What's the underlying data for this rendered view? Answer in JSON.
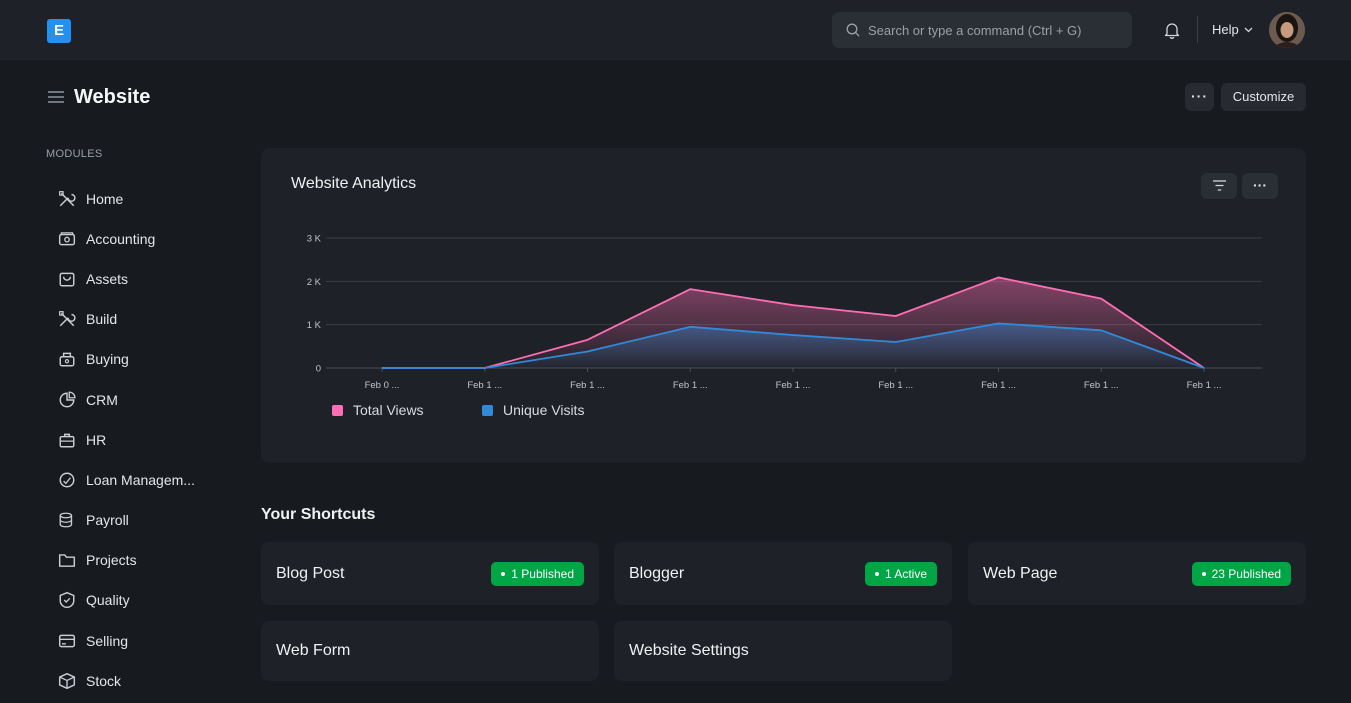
{
  "navbar": {
    "logo_letter": "E",
    "search_placeholder": "Search or type a command (Ctrl + G)",
    "help_label": "Help"
  },
  "page": {
    "title": "Website",
    "more_label": "···",
    "customize_label": "Customize"
  },
  "sidebar": {
    "section_label": "MODULES",
    "items": [
      {
        "label": "Home",
        "icon": "tools-icon"
      },
      {
        "label": "Accounting",
        "icon": "money-icon"
      },
      {
        "label": "Assets",
        "icon": "bag-icon"
      },
      {
        "label": "Build",
        "icon": "tools-icon"
      },
      {
        "label": "Buying",
        "icon": "cart-icon"
      },
      {
        "label": "CRM",
        "icon": "pie-icon"
      },
      {
        "label": "HR",
        "icon": "briefcase-icon"
      },
      {
        "label": "Loan Managem...",
        "icon": "loan-icon"
      },
      {
        "label": "Payroll",
        "icon": "coins-icon"
      },
      {
        "label": "Projects",
        "icon": "folder-icon"
      },
      {
        "label": "Quality",
        "icon": "shield-icon"
      },
      {
        "label": "Selling",
        "icon": "card-icon"
      },
      {
        "label": "Stock",
        "icon": "box-icon"
      }
    ]
  },
  "analytics": {
    "title": "Website Analytics",
    "more_label": "···"
  },
  "chart_data": {
    "type": "area",
    "categories": [
      "Feb 0 ...",
      "Feb 1 ...",
      "Feb 1 ...",
      "Feb 1 ...",
      "Feb 1 ...",
      "Feb 1 ...",
      "Feb 1 ...",
      "Feb 1 ...",
      "Feb 1 ..."
    ],
    "y_ticks": [
      "0",
      "1 K",
      "2 K",
      "3 K"
    ],
    "ylim": [
      0,
      3000
    ],
    "series": [
      {
        "name": "Total Views",
        "color": "#ff6eb4",
        "values": [
          0,
          0,
          650,
          1820,
          1450,
          1200,
          2090,
          1600,
          0
        ]
      },
      {
        "name": "Unique Visits",
        "color": "#318ad8",
        "values": [
          0,
          0,
          380,
          950,
          760,
          600,
          1030,
          870,
          0
        ]
      }
    ],
    "grid": true,
    "legend_position": "bottom-left"
  },
  "shortcuts": {
    "title": "Your Shortcuts",
    "items": [
      {
        "label": "Blog Post",
        "badge": "1 Published"
      },
      {
        "label": "Blogger",
        "badge": "1 Active"
      },
      {
        "label": "Web Page",
        "badge": "23 Published"
      },
      {
        "label": "Web Form",
        "badge": ""
      },
      {
        "label": "Website Settings",
        "badge": ""
      }
    ]
  }
}
